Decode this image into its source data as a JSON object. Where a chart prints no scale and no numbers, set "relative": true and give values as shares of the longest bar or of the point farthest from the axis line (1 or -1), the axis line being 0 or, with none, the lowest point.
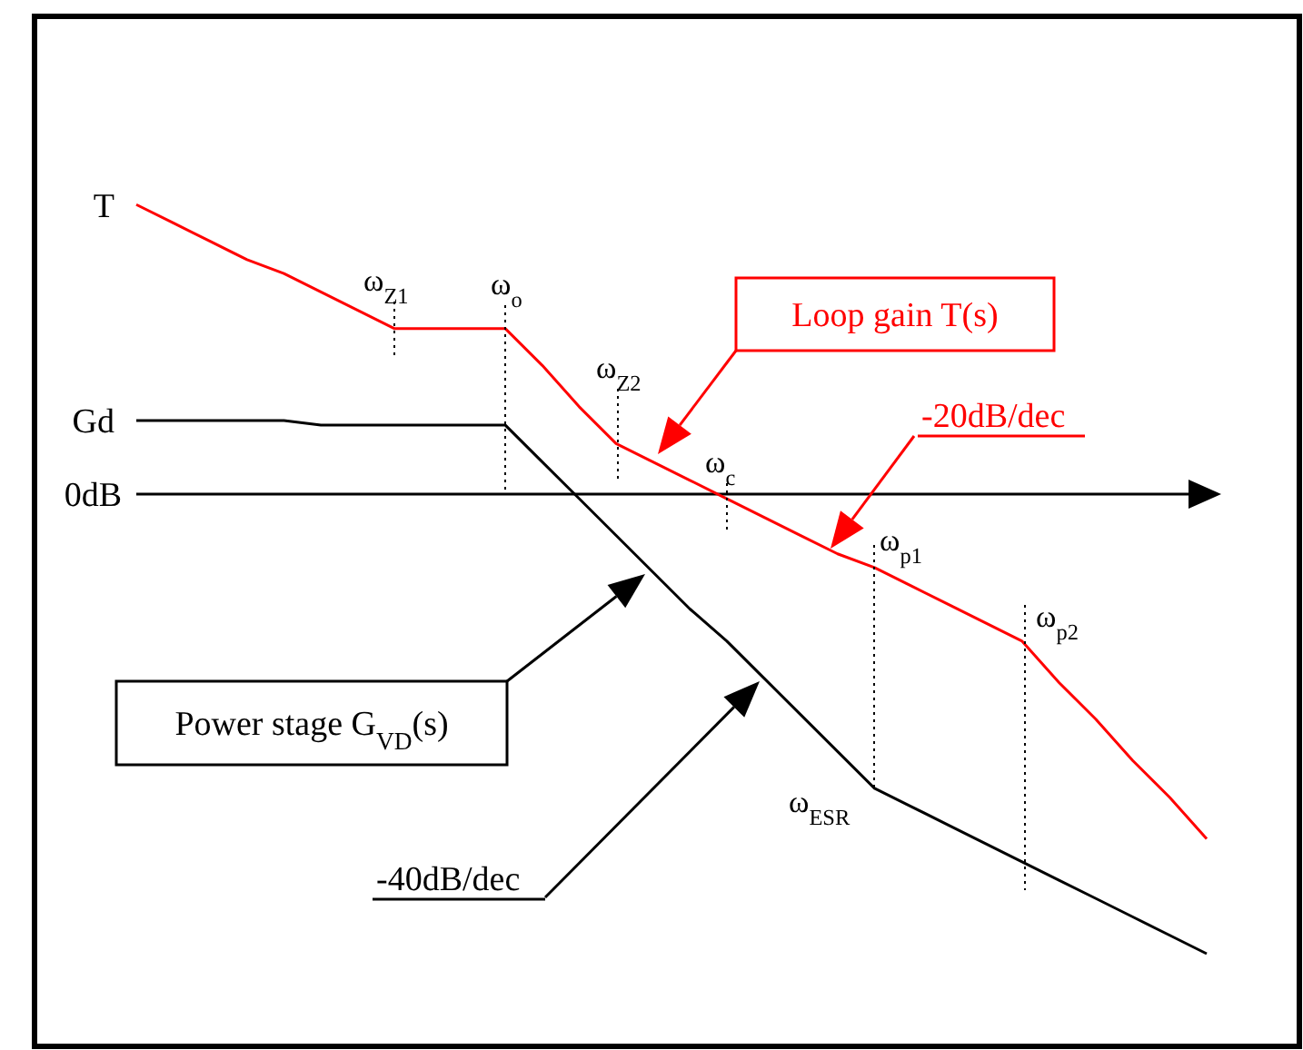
{
  "chart_data": {
    "type": "line",
    "relative": true,
    "ylabel": "0dB",
    "marker": "none",
    "line_style": "solid",
    "categories": [
      null,
      null,
      null,
      null,
      null,
      null,
      null,
      null,
      null,
      null,
      null,
      null,
      null,
      null,
      null,
      null,
      null,
      null,
      null,
      null,
      null,
      null,
      null,
      null,
      null,
      null,
      null,
      null,
      null,
      null
    ],
    "series": [
      {
        "name": "T",
        "color": "#ff0000",
        "values": [
          0.63,
          0.59,
          0.55,
          0.51,
          0.48,
          0.44,
          0.4,
          0.36,
          0.36,
          0.36,
          0.36,
          0.28,
          0.19,
          0.11,
          0.07,
          0.03,
          -0.01,
          -0.05,
          -0.09,
          -0.13,
          -0.16,
          -0.2,
          -0.24,
          -0.28,
          -0.32,
          -0.41,
          -0.49,
          -0.58,
          -0.66,
          -0.75
        ]
      },
      {
        "name": "Gd",
        "color": "#000000",
        "values": [
          0.16,
          0.16,
          0.16,
          0.16,
          0.16,
          0.15,
          0.15,
          0.15,
          0.15,
          0.15,
          0.15,
          0.07,
          -0.01,
          -0.09,
          -0.17,
          -0.25,
          -0.32,
          -0.4,
          -0.48,
          -0.56,
          -0.64,
          -0.68,
          -0.72,
          -0.76,
          -0.8,
          -0.84,
          -0.88,
          -0.92,
          -0.96,
          -1
        ]
      }
    ],
    "annotations": [
      "ω$_{Z1}$",
      "ω$_{o}$",
      "ω$_{Z2}$",
      "ω$_{c}$",
      "ω$_{p1}$",
      "ω$_{p2}$",
      "ω$_{ESR}$",
      "Loop gain T(s)",
      "-20dB/dec",
      "Power stage G$_{VD}$(s)",
      "-40dB/dec"
    ]
  }
}
